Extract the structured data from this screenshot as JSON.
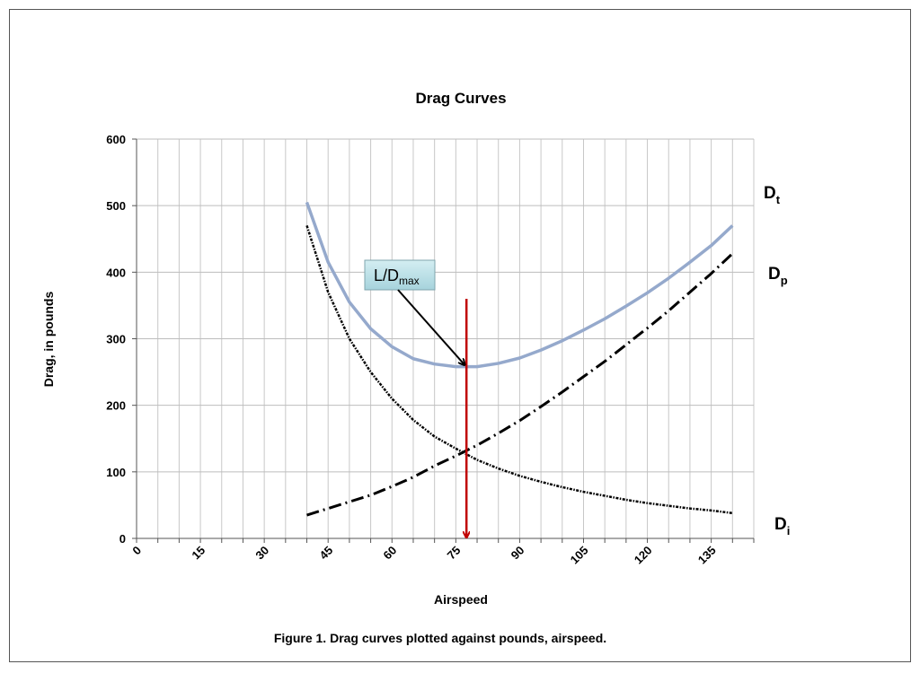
{
  "chart_data": {
    "type": "line",
    "title": "Drag Curves",
    "xlabel": "Airspeed",
    "ylabel": "Drag, in pounds",
    "caption": "Figure 1. Drag curves plotted against pounds, airspeed.",
    "xlim": [
      0,
      145
    ],
    "ylim": [
      0,
      600
    ],
    "x_ticks": [
      "0",
      "15",
      "30",
      "45",
      "60",
      "75",
      "90",
      "105",
      "120",
      "135"
    ],
    "y_ticks": [
      "0",
      "100",
      "200",
      "300",
      "400",
      "500",
      "600"
    ],
    "grid": true,
    "x": [
      40,
      45,
      50,
      55,
      60,
      65,
      70,
      75,
      80,
      85,
      90,
      95,
      100,
      105,
      110,
      115,
      120,
      125,
      130,
      135,
      140
    ],
    "series": [
      {
        "name": "Dt",
        "label_main": "D",
        "label_sub": "t",
        "color": "#95a9cc",
        "style": "solid",
        "values": [
          505,
          415,
          355,
          315,
          288,
          270,
          262,
          258,
          258,
          263,
          271,
          283,
          297,
          313,
          330,
          349,
          369,
          391,
          415,
          440,
          470
        ]
      },
      {
        "name": "Dp",
        "label_main": "D",
        "label_sub": "p",
        "color": "#000000",
        "style": "dash-dot",
        "values": [
          35,
          45,
          55,
          65,
          78,
          92,
          109,
          124,
          140,
          158,
          177,
          198,
          220,
          243,
          266,
          291,
          316,
          342,
          370,
          398,
          428
        ]
      },
      {
        "name": "Di",
        "label_main": "D",
        "label_sub": "i",
        "color": "#000000",
        "style": "dash-dot-dot",
        "values": [
          470,
          370,
          300,
          250,
          210,
          178,
          153,
          135,
          118,
          105,
          94,
          85,
          77,
          70,
          64,
          58,
          53,
          49,
          45,
          42,
          38
        ]
      }
    ],
    "annotation": {
      "text_main": "L/D",
      "text_sub": "max",
      "arrow_x": 77.5,
      "arrow_y": 258,
      "marker_x": 77.5,
      "marker_top": 360,
      "marker_color": "#c00000"
    }
  }
}
